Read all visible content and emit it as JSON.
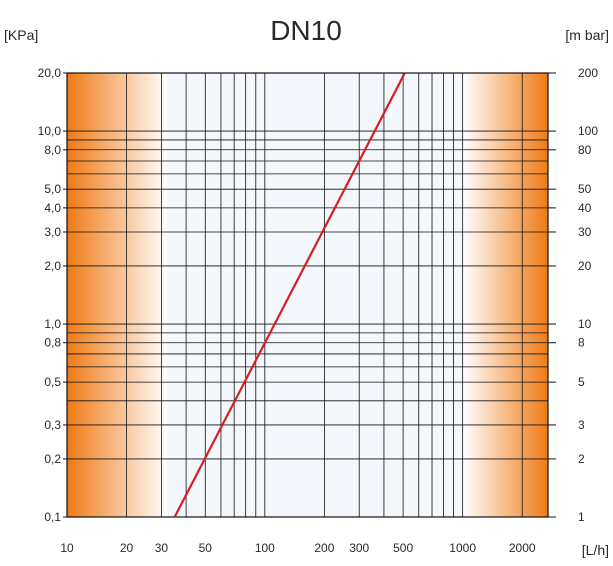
{
  "chart_data": {
    "type": "line",
    "title": "DN10",
    "left_axis_unit": "[KPa]",
    "right_axis_unit": "[m bar]",
    "x_axis_unit": "[L/h]",
    "x_scale": "log",
    "y_scale": "log",
    "xlim": [
      10,
      2700
    ],
    "ylim": [
      0.1,
      20
    ],
    "x_ticks": [
      {
        "value": 10,
        "label": "10"
      },
      {
        "value": 20,
        "label": "20"
      },
      {
        "value": 30,
        "label": "30"
      },
      {
        "value": 50,
        "label": "50"
      },
      {
        "value": 100,
        "label": "100"
      },
      {
        "value": 200,
        "label": "200"
      },
      {
        "value": 300,
        "label": "300"
      },
      {
        "value": 500,
        "label": "500"
      },
      {
        "value": 1000,
        "label": "1000"
      },
      {
        "value": 2000,
        "label": "2000"
      }
    ],
    "y_ticks_left": [
      {
        "value": 20,
        "label": "20,0"
      },
      {
        "value": 10,
        "label": "10,0"
      },
      {
        "value": 8,
        "label": "8,0"
      },
      {
        "value": 5,
        "label": "5,0"
      },
      {
        "value": 4,
        "label": "4,0"
      },
      {
        "value": 3,
        "label": "3,0"
      },
      {
        "value": 2,
        "label": "2,0"
      },
      {
        "value": 1,
        "label": "1,0"
      },
      {
        "value": 0.8,
        "label": "0,8"
      },
      {
        "value": 0.5,
        "label": "0,5"
      },
      {
        "value": 0.3,
        "label": "0,3"
      },
      {
        "value": 0.2,
        "label": "0,2"
      },
      {
        "value": 0.1,
        "label": "0,1"
      }
    ],
    "y_ticks_right": [
      {
        "value": 20,
        "label": "200"
      },
      {
        "value": 10,
        "label": "100"
      },
      {
        "value": 8,
        "label": "80"
      },
      {
        "value": 5,
        "label": "50"
      },
      {
        "value": 4,
        "label": "40"
      },
      {
        "value": 3,
        "label": "30"
      },
      {
        "value": 2,
        "label": "20"
      },
      {
        "value": 1,
        "label": "10"
      },
      {
        "value": 0.8,
        "label": "8"
      },
      {
        "value": 0.5,
        "label": "5"
      },
      {
        "value": 0.3,
        "label": "3"
      },
      {
        "value": 0.2,
        "label": "2"
      },
      {
        "value": 0.1,
        "label": "1"
      }
    ],
    "x_gridlines": [
      10,
      20,
      30,
      40,
      50,
      60,
      70,
      80,
      90,
      100,
      200,
      300,
      400,
      500,
      600,
      700,
      800,
      900,
      1000,
      2000
    ],
    "y_gridlines": [
      0.1,
      0.2,
      0.3,
      0.4,
      0.5,
      0.6,
      0.7,
      0.8,
      0.9,
      1,
      2,
      3,
      4,
      5,
      6,
      7,
      8,
      9,
      10,
      20
    ],
    "grid": true,
    "series": [
      {
        "color": "#d62020",
        "points": [
          {
            "x": 35,
            "y": 0.1
          },
          {
            "x": 510,
            "y": 20
          }
        ]
      }
    ],
    "colors": {
      "band_dark": "#ef7a14",
      "band_light": "#ffffff",
      "middle_fill": "#f4f7fb",
      "grid": "#111111",
      "frame": "#111111"
    }
  }
}
